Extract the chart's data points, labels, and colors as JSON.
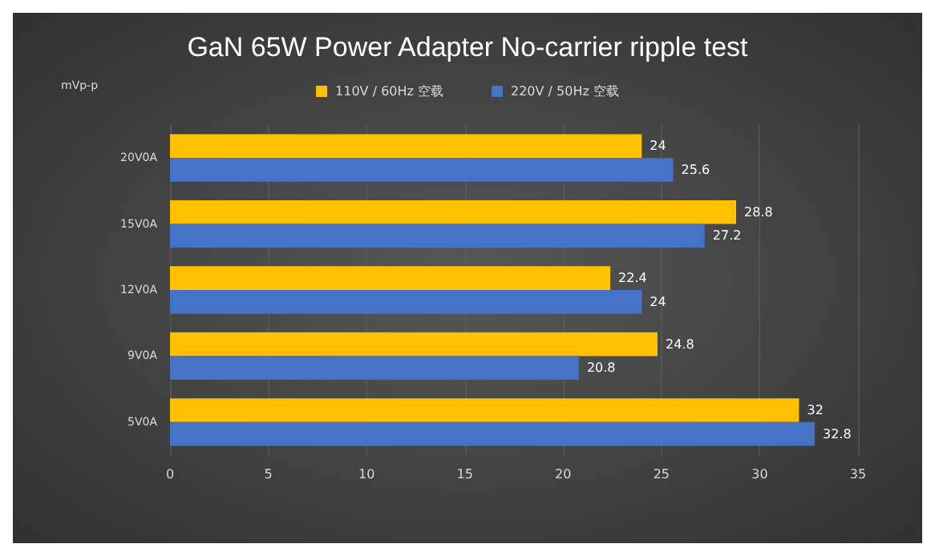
{
  "chart_data": {
    "type": "bar",
    "orientation": "horizontal",
    "title": "GaN 65W Power Adapter No-carrier ripple test",
    "xlabel": "mVp-p",
    "categories": [
      "20V0A",
      "15V0A",
      "12V0A",
      "9V0A",
      "5V0A"
    ],
    "series": [
      {
        "name": "110V / 60Hz 空载",
        "color": "#ffc000",
        "values": [
          24,
          28.8,
          22.4,
          24.8,
          32
        ]
      },
      {
        "name": "220V / 50Hz 空载",
        "color": "#4472c4",
        "values": [
          25.6,
          27.2,
          24,
          20.8,
          32.8
        ]
      }
    ],
    "xlim": [
      0,
      35
    ],
    "xticks": [
      0,
      5,
      10,
      15,
      20,
      25,
      30,
      35
    ],
    "grid": "x",
    "legend": "top",
    "data_labels": true
  }
}
